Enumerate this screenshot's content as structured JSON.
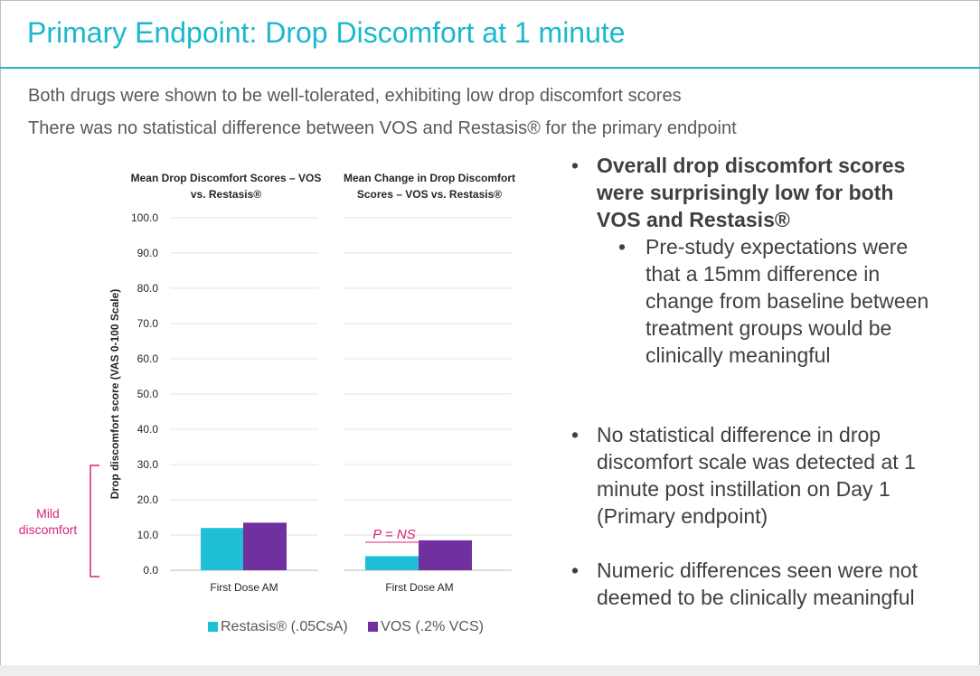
{
  "slide": {
    "title": "Primary Endpoint: Drop Discomfort at 1 minute",
    "subtitle_1": "Both drugs were shown to be well-tolerated, exhibiting low drop discomfort scores",
    "subtitle_2": "There was no statistical difference between VOS and Restasis® for the primary endpoint"
  },
  "bullets": {
    "b1": "Overall drop discomfort scores were surprisingly low for both VOS and Restasis®",
    "b1a": "Pre-study expectations were that a 15mm difference in change from baseline between treatment groups would be clinically meaningful",
    "b2": "No statistical difference in drop discomfort scale was detected at 1 minute post instillation on Day 1 (Primary endpoint)",
    "b3": "Numeric differences seen were not deemed to be clinically meaningful",
    "dot": "•"
  },
  "annotation": {
    "mild": "Mild discomfort",
    "pvalue": "P = NS",
    "mild_color": "#d6247b"
  },
  "chart_data": [
    {
      "type": "bar",
      "title": "Mean Drop Discomfort Scores – VOS vs. Restasis®",
      "ylabel": "Drop discomfort score (VAS 0-100 Scale)",
      "ylim": [
        0,
        100
      ],
      "yticks": [
        "0.0",
        "10.0",
        "20.0",
        "30.0",
        "40.0",
        "50.0",
        "60.0",
        "70.0",
        "80.0",
        "90.0",
        "100.0"
      ],
      "categories": [
        "First Dose AM"
      ],
      "series": [
        {
          "name": "Restasis® (.05CsA)",
          "color": "#1fbfd6",
          "values": [
            12.0
          ]
        },
        {
          "name": "VOS (.2% VCS)",
          "color": "#7030a0",
          "values": [
            13.5
          ]
        }
      ],
      "grid": true
    },
    {
      "type": "bar",
      "title": "Mean Change in Drop Discomfort Scores – VOS vs. Restasis®",
      "ylim": [
        0,
        100
      ],
      "categories": [
        "First Dose AM"
      ],
      "series": [
        {
          "name": "Restasis® (.05CsA)",
          "color": "#1fbfd6",
          "values": [
            4.0
          ]
        },
        {
          "name": "VOS (.2% VCS)",
          "color": "#7030a0",
          "values": [
            8.5
          ]
        }
      ],
      "grid": true
    }
  ],
  "legend": {
    "items": [
      {
        "label": "Restasis® (.05CsA)",
        "color": "#1fbfd6"
      },
      {
        "label": "VOS (.2% VCS)",
        "color": "#7030a0"
      }
    ]
  }
}
